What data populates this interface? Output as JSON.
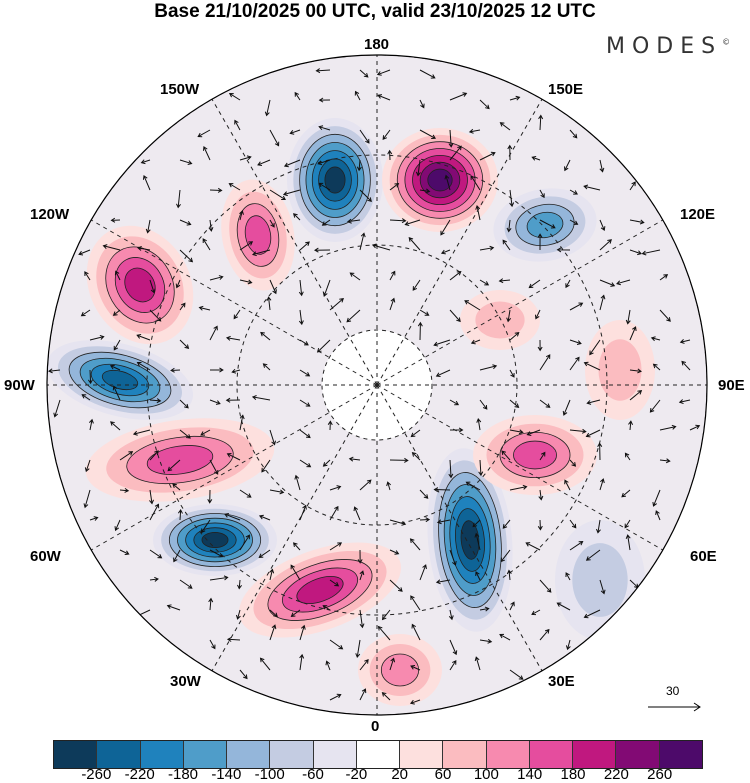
{
  "title": "Base 21/10/2025 00 UTC, valid 23/10/2025 12 UTC",
  "logo": "MODES",
  "logo_mark": "©",
  "longitude_labels": {
    "top": "180",
    "bottom": "0",
    "l150w": "150W",
    "l150e": "150E",
    "l120w": "120W",
    "l120e": "120E",
    "l90w": "90W",
    "l90e": "90E",
    "l60w": "60W",
    "l60e": "60E",
    "l30w": "30W",
    "l30e": "30E"
  },
  "reference_vector": "30",
  "colorbar": {
    "colors": [
      "#0d3a5a",
      "#0e6497",
      "#1f82bd",
      "#4f9dc9",
      "#94b6da",
      "#c4cce2",
      "#e6e4f0",
      "#ffffff",
      "#fde0de",
      "#fbbcc0",
      "#f78aaf",
      "#e54d9e",
      "#c0187f",
      "#820a74",
      "#4d0a6a"
    ],
    "labels": [
      "-260",
      "-220",
      "-180",
      "-140",
      "-100",
      "-60",
      "-20",
      "20",
      "60",
      "100",
      "140",
      "180",
      "220",
      "260"
    ]
  }
}
